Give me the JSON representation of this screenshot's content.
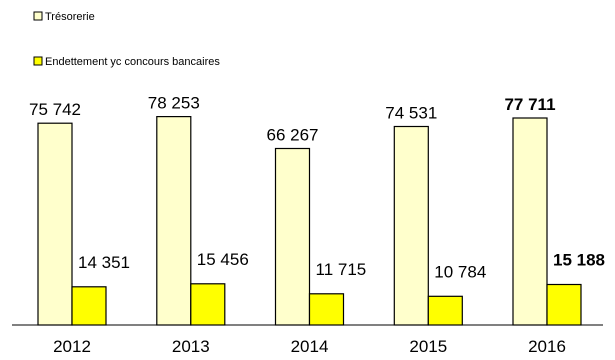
{
  "chart_data": {
    "type": "bar",
    "categories": [
      "2012",
      "2013",
      "2014",
      "2015",
      "2016"
    ],
    "series": [
      {
        "name": "Trésorerie",
        "color": "#FFFFCC",
        "values": [
          75742,
          78253,
          66267,
          74531,
          77711
        ],
        "labels": [
          "75 742",
          "78 253",
          "66 267",
          "74 531",
          "77 711"
        ]
      },
      {
        "name": "Endettement yc concours bancaires",
        "color": "#FFFF00",
        "values": [
          14351,
          15456,
          11715,
          10784,
          15188
        ],
        "labels": [
          "14 351",
          "15 456",
          "11 715",
          "10 784",
          "15 188"
        ]
      }
    ],
    "bold_labels_category": "2016",
    "ylim": [
      0,
      85000
    ],
    "title": "",
    "xlabel": "",
    "ylabel": "",
    "legend": "top-left",
    "grid": false
  }
}
